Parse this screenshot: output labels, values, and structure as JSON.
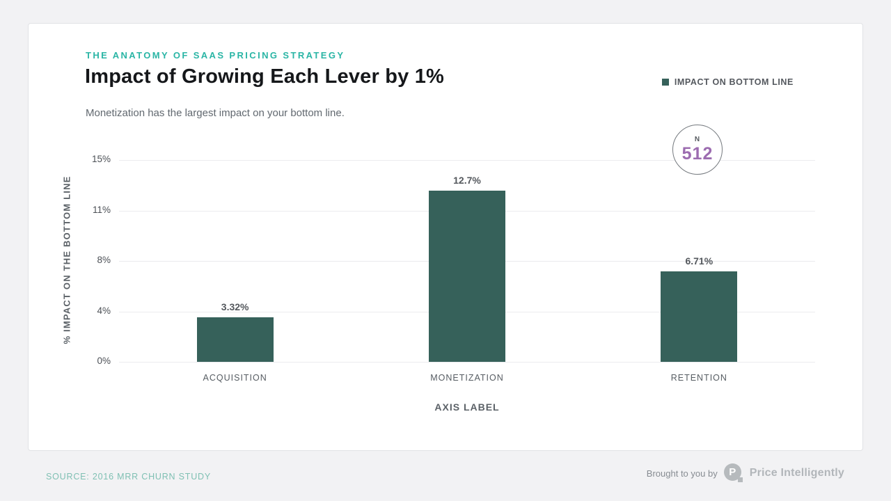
{
  "page": {
    "kicker": "THE ANATOMY OF SAAS PRICING STRATEGY",
    "title": "Impact of Growing Each Lever by 1%",
    "subtitle": "Monetization has the largest impact on your bottom line.",
    "legend": {
      "label": "IMPACT ON BOTTOM LINE",
      "swatch_color": "#36615a"
    },
    "badge": {
      "prefix": "N",
      "value": "512",
      "value_color": "#9c6cb0"
    },
    "footer": {
      "source": "SOURCE: 2016 MRR CHURN STUDY",
      "brought_by": "Brought to you by",
      "brand": "Price Intelligently",
      "logo_letter": "P"
    }
  },
  "chart_data": {
    "type": "bar",
    "title": "Impact of Growing Each Lever by 1%",
    "subtitle": "Monetization has the largest impact on your bottom line.",
    "categories": [
      "ACQUISITION",
      "MONETIZATION",
      "RETENTION"
    ],
    "values": [
      3.32,
      12.7,
      6.71
    ],
    "value_labels": [
      "3.32%",
      "12.7%",
      "6.71%"
    ],
    "series_name": "IMPACT ON BOTTOM LINE",
    "xlabel": "AXIS LABEL",
    "ylabel": "% IMPACT ON THE BOTTOM LINE",
    "ylim": [
      0,
      15
    ],
    "yticks": [
      {
        "value": 0,
        "label": "0%"
      },
      {
        "value": 3.75,
        "label": "4%"
      },
      {
        "value": 7.5,
        "label": "8%"
      },
      {
        "value": 11.25,
        "label": "11%"
      },
      {
        "value": 15,
        "label": "15%"
      }
    ],
    "bar_color": "#36615a",
    "grid": true,
    "legend_position": "top-right",
    "sample_size": 512,
    "source": "SOURCE: 2016 MRR CHURN STUDY"
  }
}
